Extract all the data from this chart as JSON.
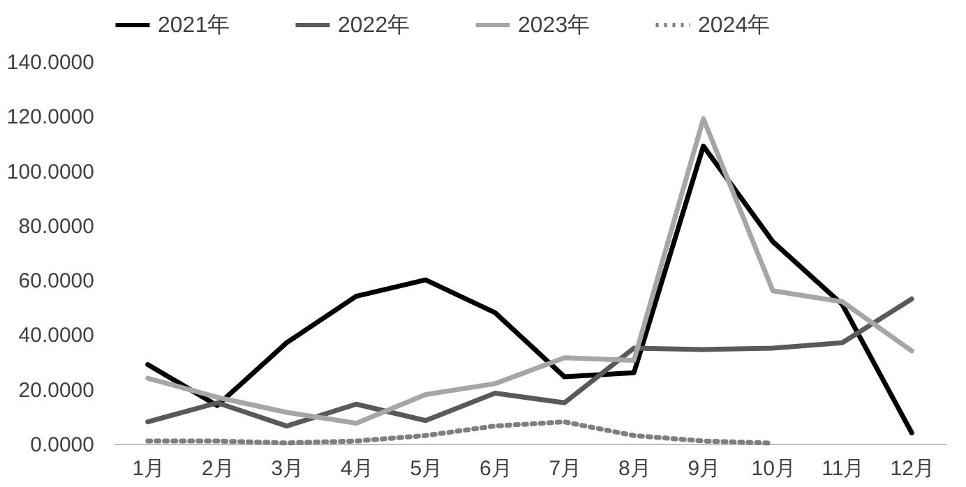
{
  "chart_data": {
    "type": "line",
    "categories": [
      "1月",
      "2月",
      "3月",
      "4月",
      "5月",
      "6月",
      "7月",
      "8月",
      "9月",
      "10月",
      "11月",
      "12月"
    ],
    "series": [
      {
        "name": "2021年",
        "color": "#000000",
        "line_style": "solid",
        "values": [
          29,
          14,
          37,
          54,
          60,
          48,
          24.5,
          26,
          109,
          74,
          51,
          4
        ]
      },
      {
        "name": "2022年",
        "color": "#595959",
        "line_style": "solid",
        "values": [
          8,
          15,
          6.5,
          14.5,
          8.5,
          18.5,
          15,
          35,
          34.5,
          35,
          37,
          53
        ]
      },
      {
        "name": "2023年",
        "color": "#a6a6a6",
        "line_style": "solid",
        "values": [
          24,
          17,
          11.5,
          7.5,
          18,
          22,
          31.5,
          30.5,
          119,
          56,
          52,
          34
        ]
      },
      {
        "name": "2024年",
        "color": "#7f7f7f",
        "line_style": "dotted",
        "values": [
          1,
          1,
          0.3,
          1,
          3,
          6.5,
          8,
          3,
          1,
          0.2,
          null,
          null
        ]
      }
    ],
    "ylim": [
      0,
      140
    ],
    "yticks": [
      {
        "value": 0,
        "label": "0.0000"
      },
      {
        "value": 20,
        "label": "20.0000"
      },
      {
        "value": 40,
        "label": "40.0000"
      },
      {
        "value": 60,
        "label": "60.0000"
      },
      {
        "value": 80,
        "label": "80.0000"
      },
      {
        "value": 100,
        "label": "100.0000"
      },
      {
        "value": 120,
        "label": "120.0000"
      },
      {
        "value": 140,
        "label": "140.0000"
      }
    ],
    "grid": false,
    "legend": "top",
    "marker": "none"
  }
}
